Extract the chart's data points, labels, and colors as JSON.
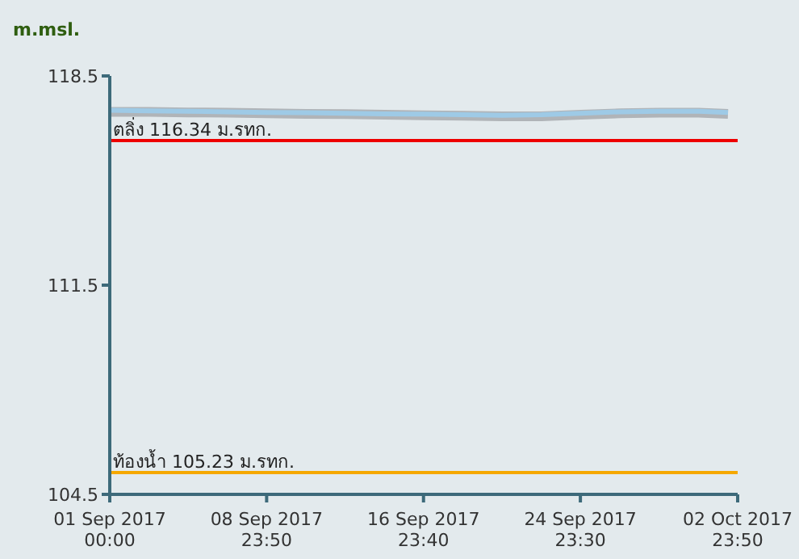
{
  "chart_data": {
    "type": "line",
    "ylabel": "m.msl.",
    "x": [
      "2017-09-01T00:00",
      "2017-09-03T00:00",
      "2017-09-05T00:00",
      "2017-09-07T00:00",
      "2017-09-09T00:00",
      "2017-09-11T00:00",
      "2017-09-13T00:00",
      "2017-09-15T00:00",
      "2017-09-17T00:00",
      "2017-09-19T00:00",
      "2017-09-21T00:00",
      "2017-09-23T00:00",
      "2017-09-25T00:00",
      "2017-09-27T00:00",
      "2017-09-29T00:00",
      "2017-10-01T00:00",
      "2017-10-02T12:00"
    ],
    "series": [
      {
        "color": "#b0b4b8",
        "values": [
          117.3,
          117.3,
          117.28,
          117.27,
          117.25,
          117.23,
          117.22,
          117.2,
          117.18,
          117.17,
          117.15,
          117.15,
          117.2,
          117.25,
          117.27,
          117.27,
          117.23
        ]
      },
      {
        "color": "#9ecae6",
        "values": [
          117.35,
          117.33,
          117.32,
          117.3,
          117.28,
          117.27,
          117.25,
          117.23,
          117.22,
          117.2,
          117.18,
          117.2,
          117.25,
          117.3,
          117.32,
          117.32,
          117.28
        ]
      }
    ],
    "xlim": [
      "2017-09-01T00:00",
      "2017-10-02T23:50"
    ],
    "xticks": [
      {
        "value": "2017-09-01T00:00",
        "label": "01 Sep 2017\n00:00"
      },
      {
        "value": "2017-09-08T23:50",
        "label": "08 Sep 2017\n23:50"
      },
      {
        "value": "2017-09-16T23:40",
        "label": "16 Sep 2017\n23:40"
      },
      {
        "value": "2017-09-24T23:30",
        "label": "24 Sep 2017\n23:30"
      },
      {
        "value": "2017-10-02T23:50",
        "label": "02 Oct 2017\n23:50"
      }
    ],
    "ylim": [
      104.5,
      118.5
    ],
    "yticks": [
      104.5,
      111.5,
      118.5
    ],
    "ref_lines": [
      {
        "axis": "y",
        "value": 116.34,
        "label": "ตลิ่ง 116.34 ม.รทก.",
        "color": "#ee0000"
      },
      {
        "axis": "y",
        "value": 105.23,
        "label": "ท้องน้ำ 105.23 ม.รทก.",
        "color": "#f5a800"
      }
    ],
    "grid": false,
    "legend": false,
    "marker": "none",
    "line_style": "solid"
  }
}
